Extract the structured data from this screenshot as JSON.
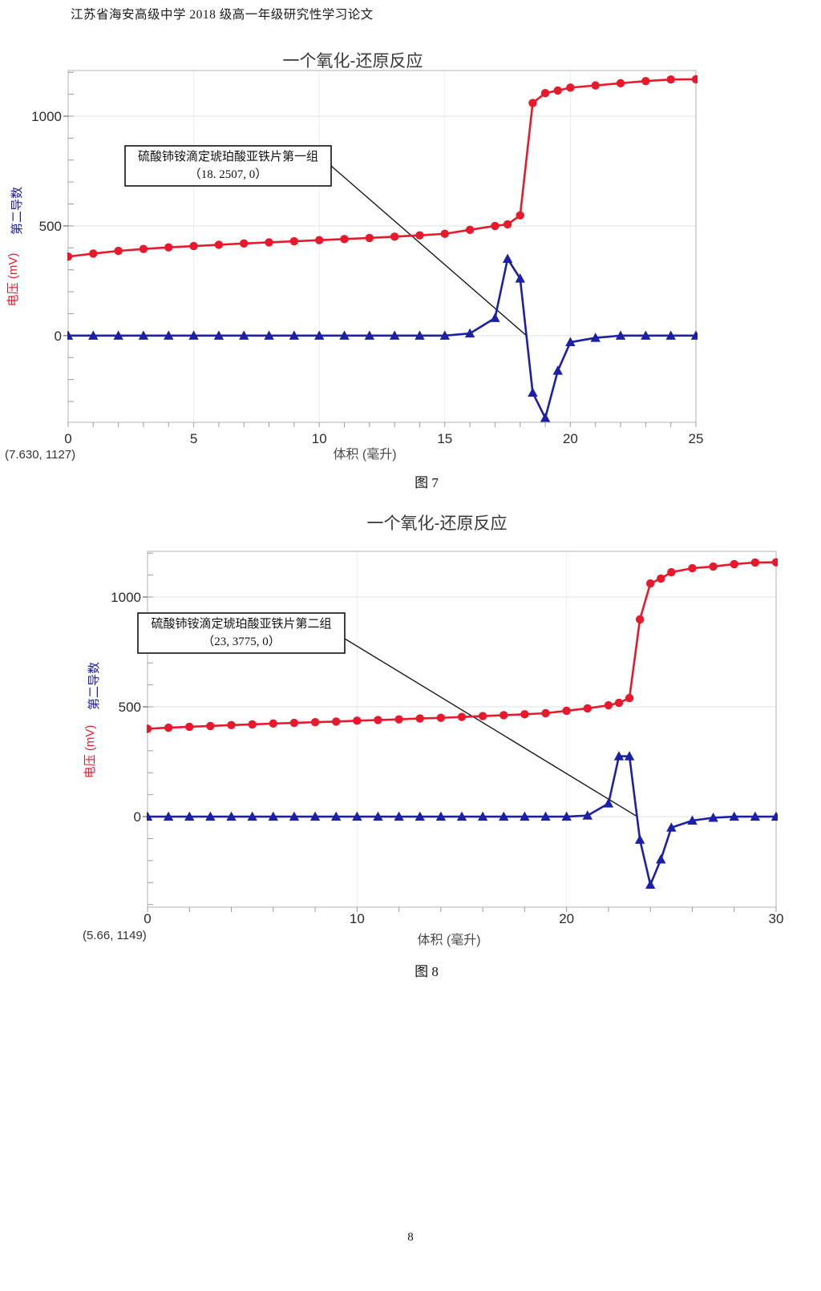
{
  "page": {
    "header": "江苏省海安高级中学 2018 级高一年级研究性学习论文",
    "page_number": "8"
  },
  "colors": {
    "voltage_red": "#e8192c",
    "derivative_blue": "#1c20a6"
  },
  "chart_data": [
    {
      "type": "line",
      "title": "一个氧化-还原反应",
      "caption": "图 7",
      "xlabel": "体积 (毫升)",
      "ylabel_voltage": "电压 (mV)",
      "ylabel_derivative": "第二导数",
      "corner_readout": "(7.630, 1127)",
      "annotation": {
        "line1": "硫酸铈铵滴定琥珀酸亚铁片第一组",
        "line2": "（18. 2507, 0）",
        "target": [
          18.2507,
          0
        ]
      },
      "xlim": [
        0,
        25
      ],
      "ylim": [
        -395,
        1208
      ],
      "x_major_ticks": [
        0,
        5,
        10,
        15,
        20,
        25
      ],
      "x_minor_step": 1,
      "y_major_ticks": [
        0,
        500,
        1000
      ],
      "y_minor_step": 100,
      "grid": true,
      "legend": "none",
      "series": [
        {
          "name": "电压 (mV)",
          "color": "#e8192c",
          "marker": "circle",
          "x": [
            0,
            1,
            2,
            3,
            4,
            5,
            6,
            7,
            8,
            9,
            10,
            11,
            12,
            13,
            14,
            15,
            16,
            17,
            17.5,
            18,
            18.5,
            19,
            19.5,
            20,
            21,
            22,
            23,
            24,
            25
          ],
          "y": [
            360,
            374,
            386,
            395,
            402,
            408,
            414,
            420,
            425,
            430,
            435,
            440,
            445,
            451,
            457,
            464,
            482,
            500,
            507,
            548,
            1060,
            1105,
            1117,
            1130,
            1140,
            1150,
            1160,
            1167,
            1168
          ]
        },
        {
          "name": "第二导数",
          "color": "#1c20a6",
          "marker": "triangle",
          "x": [
            0,
            1,
            2,
            3,
            4,
            5,
            6,
            7,
            8,
            9,
            10,
            11,
            12,
            13,
            14,
            15,
            16,
            17,
            17.5,
            18,
            18.5,
            19,
            19.5,
            20,
            21,
            22,
            23,
            24,
            25
          ],
          "y": [
            0,
            0,
            0,
            0,
            0,
            0,
            0,
            0,
            0,
            0,
            0,
            0,
            0,
            0,
            0,
            0,
            10,
            80,
            350,
            260,
            -260,
            -375,
            -160,
            -30,
            -10,
            0,
            0,
            0,
            0
          ]
        }
      ]
    },
    {
      "type": "line",
      "title": "一个氧化-还原反应",
      "caption": "图 8",
      "xlabel": "体积 (毫升)",
      "ylabel_voltage": "电压 (mV)",
      "ylabel_derivative": "第二导数",
      "corner_readout": "(5.66, 1149)",
      "annotation": {
        "line1": "硫酸铈铵滴定琥珀酸亚铁片第二组",
        "line2": "（23, 3775, 0）",
        "target": [
          23.3775,
          0
        ]
      },
      "xlim": [
        0,
        30
      ],
      "ylim": [
        -412,
        1208
      ],
      "x_major_ticks": [
        0,
        10,
        20,
        30
      ],
      "x_minor_step": 2,
      "y_major_ticks": [
        0,
        500,
        1000
      ],
      "y_minor_step": 100,
      "grid": true,
      "legend": "none",
      "series": [
        {
          "name": "电压 (mV)",
          "color": "#e8192c",
          "marker": "circle",
          "x": [
            0,
            1,
            2,
            3,
            4,
            5,
            6,
            7,
            8,
            9,
            10,
            11,
            12,
            13,
            14,
            15,
            16,
            17,
            18,
            19,
            20,
            21,
            22,
            22.5,
            23,
            23.5,
            24,
            24.5,
            25,
            26,
            27,
            28,
            29,
            30
          ],
          "y": [
            400,
            405,
            409,
            413,
            417,
            420,
            424,
            427,
            430,
            433,
            437,
            440,
            443,
            447,
            450,
            454,
            458,
            462,
            466,
            471,
            482,
            493,
            507,
            518,
            540,
            898,
            1062,
            1084,
            1113,
            1131,
            1139,
            1150,
            1157,
            1158
          ]
        },
        {
          "name": "第二导数",
          "color": "#1c20a6",
          "marker": "triangle",
          "x": [
            0,
            1,
            2,
            3,
            4,
            5,
            6,
            7,
            8,
            9,
            10,
            11,
            12,
            13,
            14,
            15,
            16,
            17,
            18,
            19,
            20,
            21,
            22,
            22.5,
            23,
            23.5,
            24,
            24.5,
            25,
            26,
            27,
            28,
            29,
            30
          ],
          "y": [
            0,
            0,
            0,
            0,
            0,
            0,
            0,
            0,
            0,
            0,
            0,
            0,
            0,
            0,
            0,
            0,
            0,
            0,
            0,
            0,
            0,
            5,
            60,
            275,
            275,
            -105,
            -310,
            -195,
            -50,
            -18,
            -5,
            0,
            0,
            0
          ]
        }
      ]
    }
  ]
}
